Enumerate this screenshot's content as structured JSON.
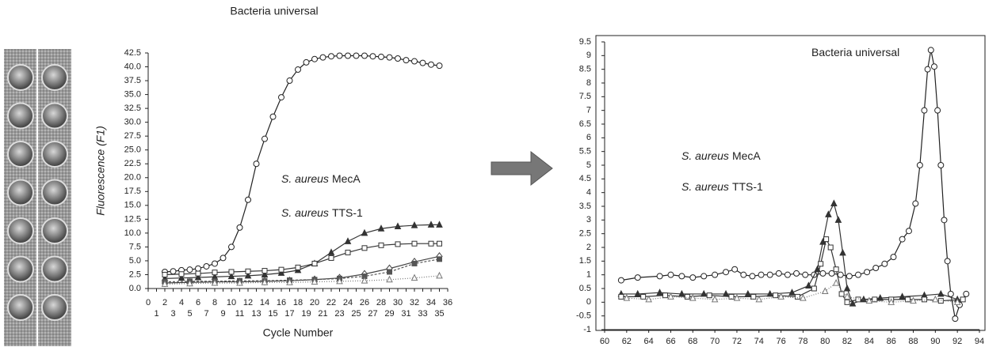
{
  "chart_data": [
    {
      "type": "line",
      "title": "Bacteria universal",
      "x_label": "Cycle Number",
      "y_label": "Fluorescence (F1)",
      "xlim": [
        0,
        36
      ],
      "xticks": [
        0,
        1,
        2,
        3,
        4,
        5,
        6,
        7,
        8,
        9,
        10,
        11,
        12,
        13,
        14,
        15,
        16,
        17,
        18,
        19,
        20,
        21,
        22,
        23,
        24,
        25,
        26,
        27,
        28,
        29,
        30,
        31,
        32,
        33,
        34,
        35,
        36
      ],
      "ylim": [
        0,
        42.5
      ],
      "yticks": [
        {
          "value": 0,
          "label": "0.0"
        },
        2.5,
        {
          "value": 5,
          "label": "5.0"
        },
        7.5,
        {
          "value": 10,
          "label": "10.0"
        },
        12.5,
        {
          "value": 15,
          "label": "15.0"
        },
        17.5,
        {
          "value": 20,
          "label": "20.0"
        },
        22.5,
        {
          "value": 25,
          "label": "25.0"
        },
        27.5,
        {
          "value": 30,
          "label": "30.0"
        },
        32.5,
        {
          "value": 35,
          "label": "35.0"
        },
        37.5,
        {
          "value": 40,
          "label": "40.0"
        },
        42.5
      ],
      "annotations": [
        {
          "italic": "S. aureus",
          "text": "MecA"
        },
        {
          "italic": "S. aureus",
          "text": "TTS-1"
        }
      ],
      "series": [
        {
          "color": "#222",
          "marker": "circle",
          "x": [
            2,
            3,
            4,
            5,
            6,
            7,
            8,
            9,
            10,
            11,
            12,
            13,
            14,
            15,
            16,
            17,
            18,
            19,
            20,
            21,
            22,
            23,
            24,
            25,
            26,
            27,
            28,
            29,
            30,
            31,
            32,
            33,
            34,
            35
          ],
          "values": [
            3.0,
            3.1,
            3.3,
            3.4,
            3.6,
            4.0,
            4.5,
            5.5,
            7.5,
            11,
            16,
            22.5,
            27,
            31,
            34.5,
            37.5,
            39.5,
            40.8,
            41.4,
            41.7,
            41.9,
            42,
            42,
            42,
            42,
            41.9,
            41.8,
            41.7,
            41.5,
            41.2,
            41,
            40.7,
            40.4,
            40.2
          ]
        },
        {
          "color": "#333",
          "marker": "triangle-filled",
          "x": [
            2,
            4,
            6,
            8,
            10,
            12,
            14,
            16,
            18,
            20,
            22,
            24,
            26,
            28,
            30,
            32,
            34,
            35
          ],
          "values": [
            1.8,
            1.9,
            2.0,
            2.1,
            2.2,
            2.3,
            2.5,
            2.8,
            3.3,
            4.5,
            6.5,
            8.5,
            10,
            10.8,
            11.2,
            11.4,
            11.5,
            11.5
          ]
        },
        {
          "color": "#333",
          "marker": "square",
          "x": [
            2,
            4,
            6,
            8,
            10,
            12,
            14,
            16,
            18,
            20,
            22,
            24,
            26,
            28,
            30,
            32,
            34,
            35
          ],
          "values": [
            2.5,
            2.6,
            2.7,
            2.9,
            3.0,
            3.1,
            3.2,
            3.4,
            3.8,
            4.5,
            5.5,
            6.5,
            7.3,
            7.8,
            8.0,
            8.1,
            8.1,
            8.1
          ]
        },
        {
          "color": "#444",
          "marker": "diamond",
          "x": [
            2,
            5,
            8,
            11,
            14,
            17,
            20,
            23,
            26,
            29,
            32,
            35
          ],
          "values": [
            1.0,
            1.1,
            1.2,
            1.2,
            1.3,
            1.4,
            1.6,
            1.9,
            2.6,
            3.6,
            4.8,
            5.8
          ]
        },
        {
          "color": "#555",
          "marker": "square-filled",
          "dash": "3,2",
          "x": [
            2,
            5,
            8,
            11,
            14,
            17,
            20,
            23,
            26,
            29,
            32,
            35
          ],
          "values": [
            1.2,
            1.3,
            1.3,
            1.4,
            1.4,
            1.5,
            1.6,
            1.8,
            2.2,
            3.0,
            4.5,
            5.3
          ]
        },
        {
          "color": "#777",
          "marker": "triangle",
          "dash": "1,2",
          "x": [
            2,
            5,
            8,
            11,
            14,
            17,
            20,
            23,
            26,
            29,
            32,
            35
          ],
          "values": [
            0.8,
            0.9,
            1.0,
            1.0,
            1.1,
            1.1,
            1.2,
            1.3,
            1.4,
            1.6,
            1.9,
            2.3
          ]
        }
      ]
    },
    {
      "type": "line",
      "xlim": [
        60,
        94
      ],
      "xticks": [
        60,
        62,
        64,
        66,
        68,
        70,
        72,
        74,
        76,
        78,
        80,
        82,
        84,
        86,
        88,
        90,
        92,
        94
      ],
      "ylim": [
        -1,
        9.5
      ],
      "yticks": [
        -1,
        -0.5,
        0,
        0.5,
        1,
        1.5,
        2,
        2.5,
        3,
        3.5,
        4,
        4.5,
        5,
        5.5,
        6,
        6.5,
        7,
        7.5,
        8,
        8.5,
        9,
        9.5
      ],
      "annotations": [
        {
          "text": "Bacteria universal"
        },
        {
          "italic": "S. aureus",
          "text": "MecA"
        },
        {
          "italic": "S. aureus",
          "text": "TTS-1"
        }
      ],
      "series": [
        {
          "color": "#222",
          "marker": "circle",
          "x": [
            61.5,
            63,
            65,
            66,
            67,
            68,
            69,
            70,
            71,
            71.8,
            72.6,
            73.4,
            74.2,
            75,
            75.8,
            76.6,
            77.4,
            78.2,
            79,
            79.8,
            80.6,
            81.4,
            82.2,
            83,
            83.8,
            84.6,
            85.4,
            86.2,
            87,
            87.6,
            88.2,
            88.6,
            89,
            89.3,
            89.6,
            89.9,
            90.2,
            90.5,
            90.8,
            91.1,
            91.4,
            91.8,
            92.2,
            92.8
          ],
          "values": [
            0.8,
            0.9,
            0.95,
            1.0,
            0.95,
            0.9,
            0.95,
            1.0,
            1.1,
            1.2,
            1.0,
            0.95,
            1.0,
            1.0,
            1.05,
            1.0,
            1.05,
            1.0,
            1.0,
            1.05,
            1.05,
            1.0,
            0.95,
            1.0,
            1.1,
            1.25,
            1.4,
            1.65,
            2.3,
            2.6,
            3.6,
            5,
            7,
            8.5,
            9.2,
            8.6,
            7,
            5,
            3,
            1.5,
            0.3,
            -0.6,
            -0.1,
            0.3
          ]
        },
        {
          "color": "#333",
          "marker": "triangle-filled",
          "x": [
            61.5,
            63,
            65,
            67,
            69,
            71,
            73,
            75,
            77,
            78.5,
            79.3,
            79.8,
            80.3,
            80.8,
            81.2,
            81.6,
            82,
            82.5,
            83.5,
            85,
            87,
            89,
            90.5,
            92
          ],
          "values": [
            0.3,
            0.3,
            0.35,
            0.3,
            0.3,
            0.3,
            0.3,
            0.3,
            0.35,
            0.6,
            1.2,
            2.2,
            3.2,
            3.6,
            3.0,
            1.8,
            0.5,
            -0.05,
            0.1,
            0.15,
            0.2,
            0.25,
            0.3,
            0.1
          ]
        },
        {
          "color": "#333",
          "marker": "square",
          "x": [
            61.5,
            63.5,
            65.5,
            67.5,
            69.5,
            71.5,
            73.5,
            75.5,
            77.5,
            79,
            79.6,
            80.1,
            80.5,
            81,
            81.5,
            82,
            83,
            84.5,
            86,
            87.5,
            89,
            90.5,
            92.5
          ],
          "values": [
            0.2,
            0.2,
            0.25,
            0.2,
            0.25,
            0.2,
            0.2,
            0.25,
            0.2,
            0.5,
            1.4,
            2.3,
            2.0,
            1.2,
            0.3,
            0.0,
            0.1,
            0.1,
            0.1,
            0.1,
            0.1,
            0.05,
            0.1
          ]
        },
        {
          "color": "#777",
          "marker": "triangle",
          "dash": "1,2",
          "x": [
            62,
            64,
            66,
            68,
            70,
            72,
            74,
            76,
            78,
            80,
            81,
            82,
            84,
            86,
            88,
            90,
            92
          ],
          "values": [
            0.15,
            0.1,
            0.2,
            0.15,
            0.1,
            0.15,
            0.1,
            0.2,
            0.15,
            0.4,
            0.7,
            0.2,
            0.05,
            0.0,
            0.05,
            0.1,
            0.0
          ]
        }
      ]
    }
  ]
}
